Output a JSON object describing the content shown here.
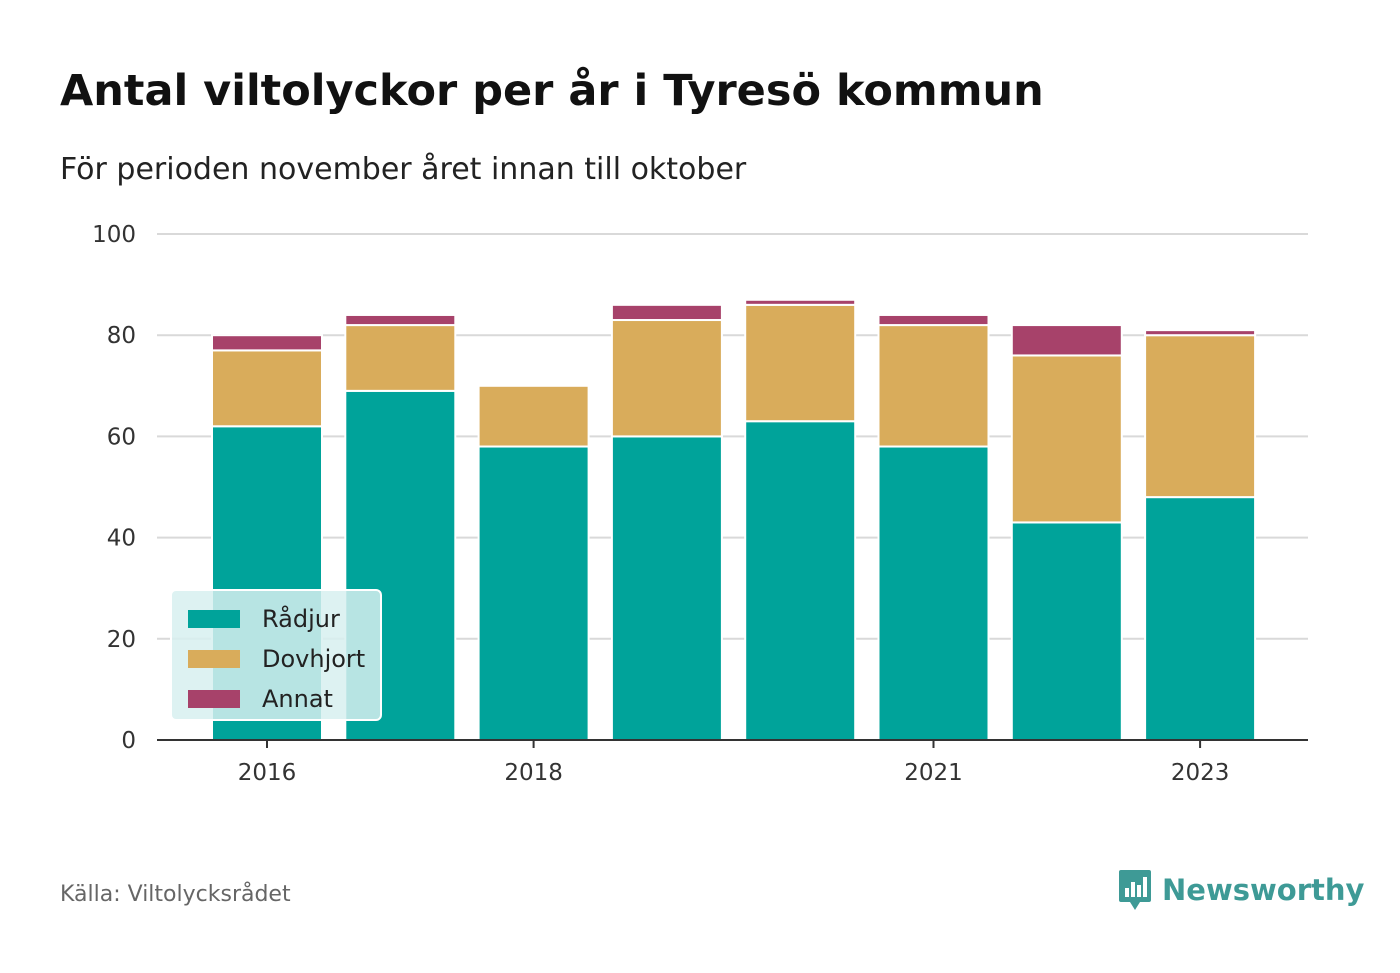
{
  "header": {
    "title": "Antal viltolyckor per år i Tyresö kommun",
    "subtitle": "För perioden november året innan till oktober"
  },
  "footer": {
    "source": "Källa: Viltolycksrådet",
    "brand": "Newsworthy",
    "brand_color": "#3e9a96"
  },
  "chart_data": {
    "type": "bar",
    "stacked": true,
    "categories": [
      2016,
      2017,
      2018,
      2019,
      2020,
      2021,
      2022,
      2023
    ],
    "x_tick_labels": [
      "2016",
      "2018",
      "2021",
      "2023"
    ],
    "ylim": [
      0,
      100
    ],
    "y_ticks": [
      0,
      20,
      40,
      60,
      80,
      100
    ],
    "grid": true,
    "legend_position": "bottom-left",
    "series": [
      {
        "name": "Rådjur",
        "color": "#00a39a",
        "values": [
          62,
          69,
          58,
          60,
          63,
          58,
          43,
          48
        ]
      },
      {
        "name": "Dovhjort",
        "color": "#d9ac5b",
        "values": [
          15,
          13,
          12,
          23,
          23,
          24,
          33,
          32
        ]
      },
      {
        "name": "Annat",
        "color": "#a7426a",
        "values": [
          3,
          2,
          0,
          3,
          1,
          2,
          6,
          1
        ]
      }
    ]
  }
}
